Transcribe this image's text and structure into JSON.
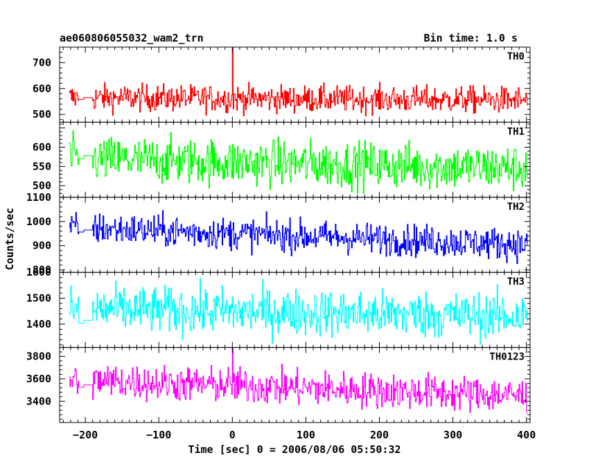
{
  "header": {
    "title": "ae060806055032_wam2_trn",
    "bin_time": "Bin time: 1.0 s"
  },
  "chart_data": {
    "type": "line",
    "title": "ae060806055032_wam2_trn",
    "subtitle": "Bin time: 1.0 s",
    "xlabel": "Time [sec] 0 = 2006/08/06 05:50:32",
    "ylabel": "Counts/sec",
    "xlim": [
      -235,
      405
    ],
    "x_ticks": [
      -200,
      -100,
      0,
      100,
      200,
      300,
      400
    ],
    "x_tick_labels": [
      "−200",
      "−100",
      "0",
      "100",
      "200",
      "300",
      "400"
    ],
    "x_start": -222,
    "x_end": 401,
    "gap": [
      -210,
      -190
    ],
    "panels": [
      {
        "name": "TH0",
        "color": "#ff0000",
        "ylim": [
          470,
          760
        ],
        "yticks": [
          500,
          600,
          700
        ],
        "mean_start": 565,
        "mean_end": 555,
        "noise": 26,
        "gap_level": 565,
        "spikes": [
          {
            "x": 0,
            "y": 760
          }
        ]
      },
      {
        "name": "TH1",
        "color": "#00ff00",
        "ylim": [
          470,
          665
        ],
        "yticks": [
          500,
          550,
          600
        ],
        "mean_start": 570,
        "mean_end": 545,
        "noise": 30,
        "gap_level": 578,
        "spikes": []
      },
      {
        "name": "TH2",
        "color": "#0000ff",
        "ylim": [
          790,
          1100
        ],
        "yticks": [
          800,
          900,
          1000,
          1100
        ],
        "mean_start": 975,
        "mean_end": 905,
        "noise": 33,
        "gap_level": 965,
        "spikes": [
          {
            "x": -228,
            "y": 1100
          }
        ]
      },
      {
        "name": "TH3",
        "color": "#00ffff",
        "ylim": [
          1310,
          1600
        ],
        "yticks": [
          1400,
          1500,
          1600
        ],
        "mean_start": 1460,
        "mean_end": 1430,
        "noise": 45,
        "gap_level": 1415,
        "spikes": []
      },
      {
        "name": "TH0123",
        "color": "#ff00ff",
        "ylim": [
          3210,
          3880
        ],
        "yticks": [
          3400,
          3600,
          3800
        ],
        "mean_start": 3590,
        "mean_end": 3450,
        "noise": 80,
        "gap_level": 3545,
        "spikes": [
          {
            "x": 0,
            "y": 3880
          }
        ]
      }
    ]
  }
}
